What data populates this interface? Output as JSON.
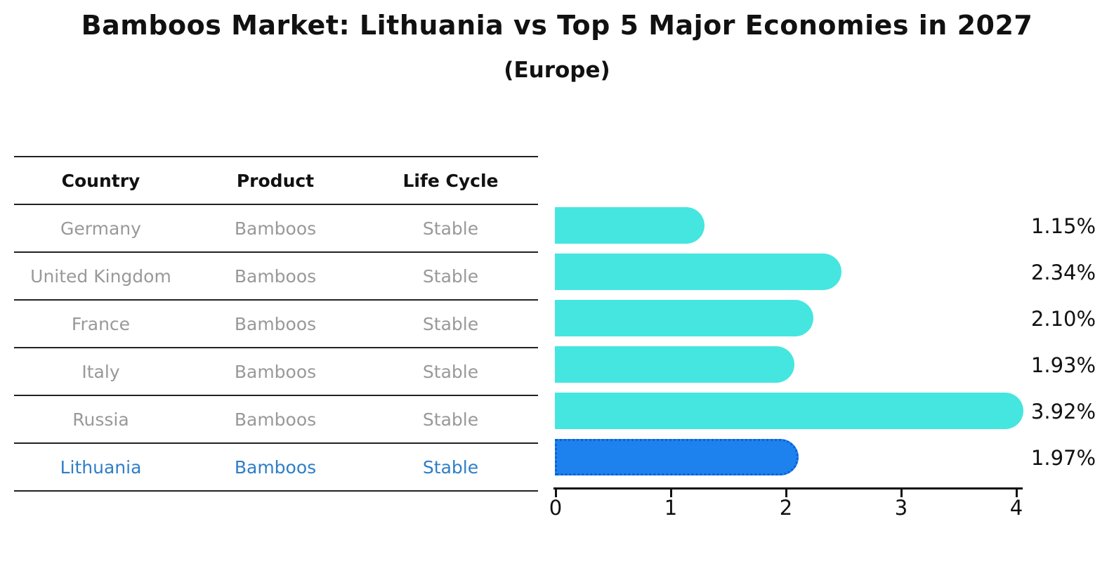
{
  "header": {
    "title": "Bamboos Market: Lithuania vs Top 5 Major Economies in 2027",
    "subtitle": "(Europe)"
  },
  "table": {
    "columns": [
      "Country",
      "Product",
      "Life Cycle"
    ],
    "rows": [
      {
        "country": "Germany",
        "product": "Bamboos",
        "life_cycle": "Stable",
        "highlight": false
      },
      {
        "country": "United Kingdom",
        "product": "Bamboos",
        "life_cycle": "Stable",
        "highlight": false
      },
      {
        "country": "France",
        "product": "Bamboos",
        "life_cycle": "Stable",
        "highlight": false
      },
      {
        "country": "Italy",
        "product": "Bamboos",
        "life_cycle": "Stable",
        "highlight": false
      },
      {
        "country": "Russia",
        "product": "Bamboos",
        "life_cycle": "Stable",
        "highlight": false
      },
      {
        "country": "Lithuania",
        "product": "Bamboos",
        "life_cycle": "Stable",
        "highlight": true
      }
    ]
  },
  "chart_data": {
    "type": "bar",
    "orientation": "horizontal",
    "title": "Bamboos Market: Lithuania vs Top 5 Major Economies in 2027",
    "subtitle": "(Europe)",
    "categories": [
      "Germany",
      "United Kingdom",
      "France",
      "Italy",
      "Russia",
      "Lithuania"
    ],
    "values": [
      1.15,
      2.34,
      2.1,
      1.93,
      3.92,
      1.97
    ],
    "value_labels": [
      "1.15%",
      "2.34%",
      "2.10%",
      "1.93%",
      "3.92%",
      "1.97%"
    ],
    "x_ticks": [
      "0",
      "1",
      "2",
      "3",
      "4"
    ],
    "xlim": [
      0,
      4.1
    ],
    "grid": false,
    "legend": null,
    "highlight_index": 5,
    "colors": {
      "bar": "#45E6DF",
      "highlight_bar": "#1E82EE",
      "highlight_border": "#0F5FD7",
      "highlight_text": "#2E7EC8",
      "row_text": "#999999",
      "heading_text": "#111111",
      "line": "#222222"
    }
  }
}
